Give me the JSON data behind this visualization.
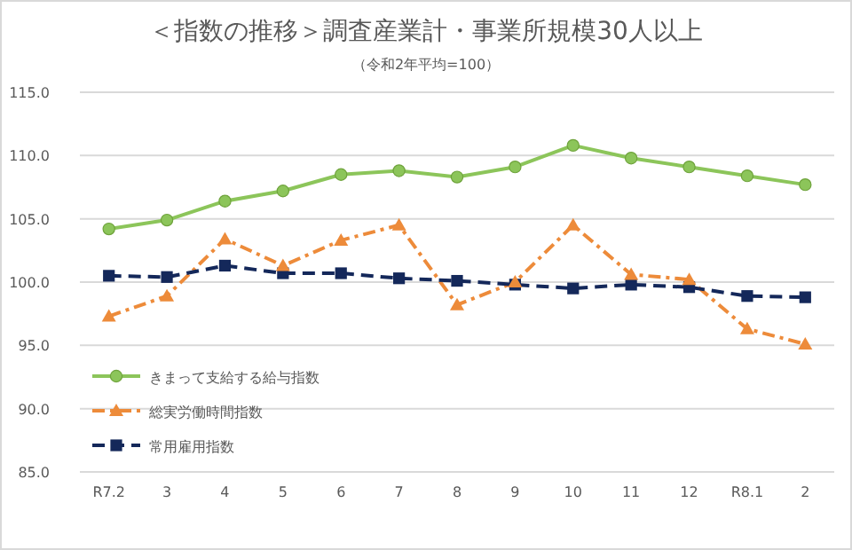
{
  "chart_data": {
    "type": "line",
    "title": "＜指数の推移＞調査産業計・事業所規模30人以上",
    "subtitle": "（令和2年平均=100）",
    "categories": [
      "R7.2",
      "3",
      "4",
      "5",
      "6",
      "7",
      "8",
      "9",
      "10",
      "11",
      "12",
      "R8.1",
      "2"
    ],
    "ylim": [
      85,
      115
    ],
    "yticks": [
      {
        "value": 85,
        "label": "85.0"
      },
      {
        "value": 90,
        "label": "90.0"
      },
      {
        "value": 95,
        "label": "95.0"
      },
      {
        "value": 100,
        "label": "100.0"
      },
      {
        "value": 105,
        "label": "105.0"
      },
      {
        "value": 110,
        "label": "110.0"
      },
      {
        "value": 115,
        "label": "115.0"
      }
    ],
    "grid": "y",
    "legend": "bottom left",
    "series": [
      {
        "name": "きまって支給する給与指数",
        "color": "#8cc55a",
        "marker": "circle",
        "line_style": "solid",
        "values": [
          104.2,
          104.9,
          106.4,
          107.2,
          108.5,
          108.8,
          108.3,
          109.1,
          110.8,
          109.8,
          109.1,
          108.4,
          107.7
        ]
      },
      {
        "name": "総実労働時間指数",
        "color": "#ed8b3a",
        "marker": "triangle",
        "line_style": "dashdot",
        "values": [
          97.3,
          98.9,
          103.4,
          101.3,
          103.3,
          104.5,
          98.2,
          100.0,
          104.5,
          100.6,
          100.2,
          96.3,
          95.1
        ]
      },
      {
        "name": "常用雇用指数",
        "color": "#14285a",
        "marker": "square",
        "line_style": "dashed",
        "values": [
          100.5,
          100.4,
          101.3,
          100.7,
          100.7,
          100.3,
          100.1,
          99.8,
          99.5,
          99.8,
          99.6,
          98.9,
          98.8
        ]
      }
    ]
  }
}
